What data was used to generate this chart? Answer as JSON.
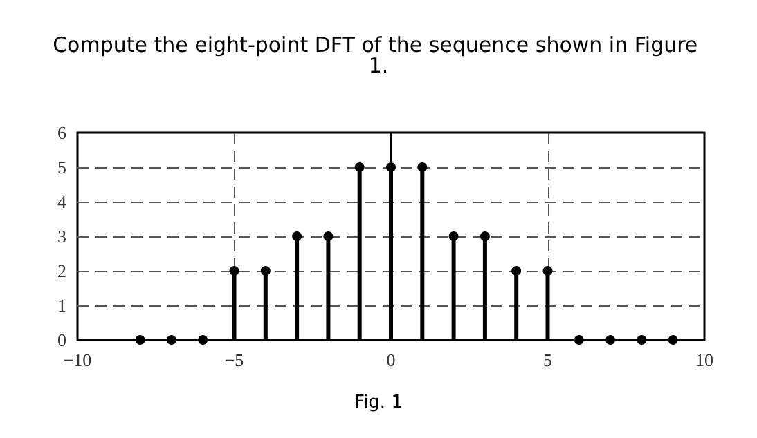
{
  "chart_data": {
    "type": "lollipop",
    "title": "Compute the eight-point DFT of the sequence shown in Figure 1.",
    "x": [
      -8,
      -7,
      -6,
      -5,
      -4,
      -3,
      -2,
      -1,
      0,
      1,
      2,
      3,
      4,
      5,
      6,
      7,
      8,
      9
    ],
    "values": [
      0,
      0,
      0,
      2,
      2,
      3,
      3,
      5,
      5,
      5,
      3,
      3,
      2,
      2,
      0,
      0,
      0,
      0
    ],
    "color": "#000000",
    "marker": "circle",
    "grid": true,
    "xlim": [
      -10,
      10
    ],
    "xticks": [
      -10,
      -5,
      0,
      5,
      10
    ],
    "ylim": [
      0,
      6
    ],
    "yticks": [
      0,
      1,
      2,
      3,
      4,
      5,
      6
    ],
    "annotations": [
      "Fig. 1"
    ]
  }
}
